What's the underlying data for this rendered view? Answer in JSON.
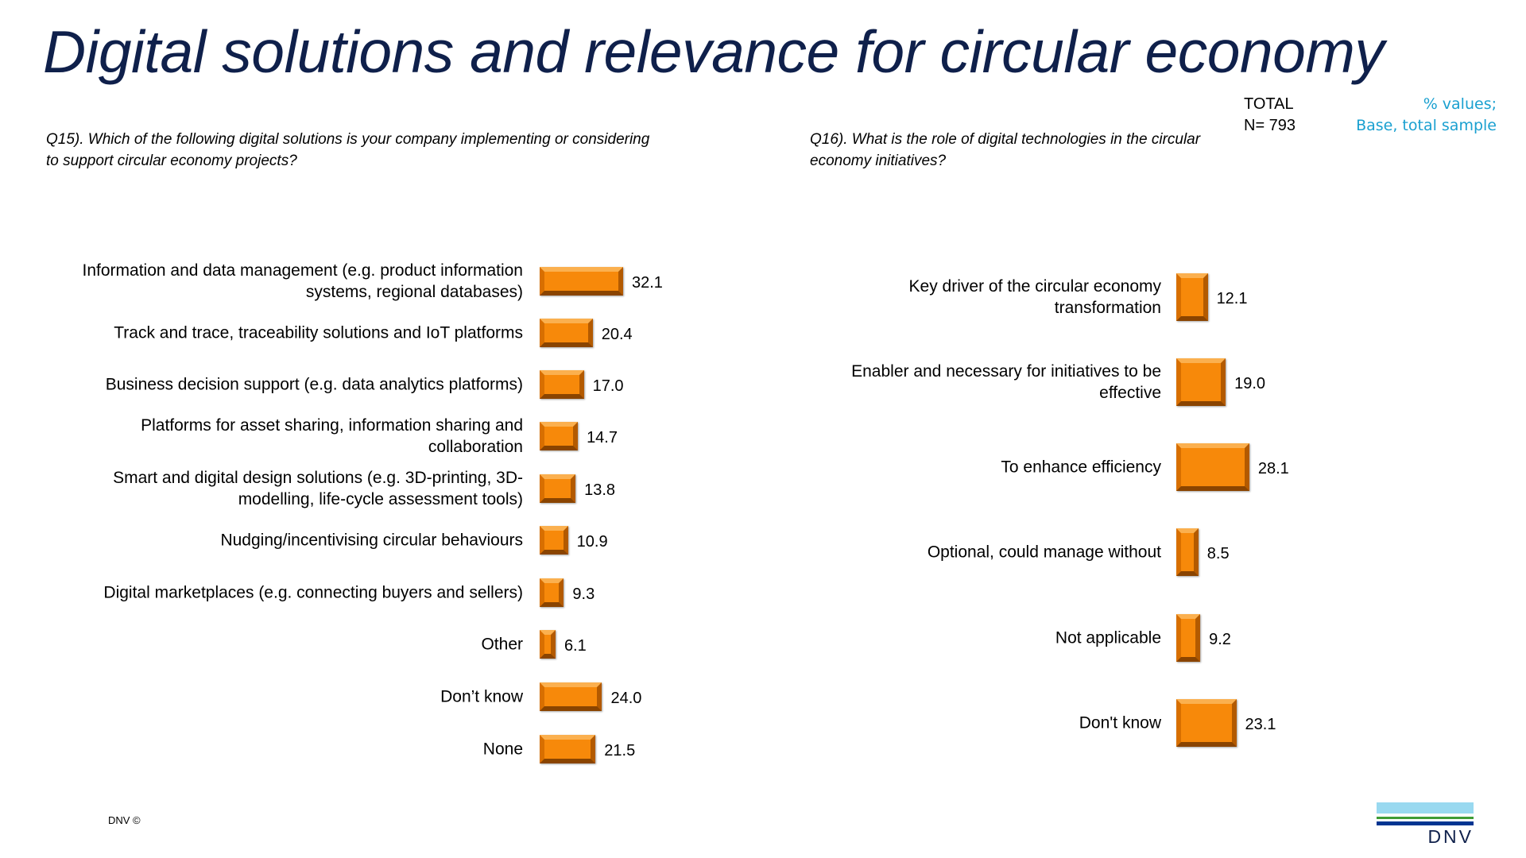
{
  "title": "Digital solutions and relevance for circular economy",
  "total": {
    "label": "TOTAL",
    "n": "N= 793"
  },
  "note": {
    "line1": "% values;",
    "line2": "Base, total sample"
  },
  "footer": "DNV ©",
  "logo": "DNV",
  "colors": {
    "bar": "#f7890a",
    "title": "#0f204b",
    "note": "#1aa0d0"
  },
  "chart_data": [
    {
      "type": "bar",
      "orientation": "horizontal",
      "title": "Q15). Which of the following digital solutions is your company implementing or considering to support circular economy projects?",
      "categories": [
        "Information and data management (e.g. product information systems, regional databases)",
        "Track and trace, traceability solutions and IoT platforms",
        "Business decision support (e.g. data analytics platforms)",
        "Platforms for asset sharing, information sharing and collaboration",
        "Smart and digital design solutions (e.g. 3D-printing, 3D-modelling, life-cycle assessment tools)",
        "Nudging/incentivising circular behaviours",
        "Digital marketplaces (e.g. connecting buyers and sellers)",
        "Other",
        "Don’t know",
        "None"
      ],
      "values": [
        32.1,
        20.4,
        17.0,
        14.7,
        13.8,
        10.9,
        9.3,
        6.1,
        24.0,
        21.5
      ],
      "labels": [
        "32.1",
        "20.4",
        "17.0",
        "14.7",
        "13.8",
        "10.9",
        "9.3",
        "6.1",
        "24.0",
        "21.5"
      ]
    },
    {
      "type": "bar",
      "orientation": "horizontal",
      "title": "Q16). What is the role of digital technologies in the circular economy initiatives?",
      "categories": [
        "Key driver of the circular economy transformation",
        "Enabler and necessary for initiatives to be effective",
        "To enhance efficiency",
        "Optional, could manage without",
        "Not applicable",
        "Don't know"
      ],
      "values": [
        12.1,
        19.0,
        28.1,
        8.5,
        9.2,
        23.1
      ],
      "labels": [
        "12.1",
        "19.0",
        "28.1",
        "8.5",
        "9.2",
        "23.1"
      ]
    }
  ]
}
